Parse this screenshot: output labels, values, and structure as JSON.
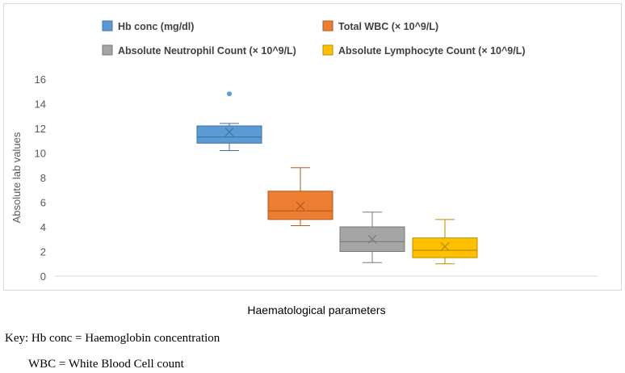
{
  "chart_data": {
    "type": "box",
    "title": "",
    "xlabel": "Haematological parameters",
    "ylabel": "Absolute lab values",
    "ylim": [
      0,
      16
    ],
    "yticks": [
      0,
      2,
      4,
      6,
      8,
      10,
      12,
      14,
      16
    ],
    "grid": false,
    "legend_position": "top",
    "series": [
      {
        "name": "Hb conc (mg/dl)",
        "color": "#5b9bd5",
        "border": "#41719c",
        "min": 10.2,
        "q1": 10.8,
        "median": 11.3,
        "mean": 11.7,
        "q3": 12.2,
        "max": 12.4,
        "outliers": [
          14.8
        ]
      },
      {
        "name": "Total WBC (× 10^9/L)",
        "color": "#ed7d31",
        "border": "#ae5a21",
        "min": 4.1,
        "q1": 4.6,
        "median": 5.3,
        "mean": 5.7,
        "q3": 6.9,
        "max": 8.8,
        "outliers": []
      },
      {
        "name": "Absolute Neutrophil Count (× 10^9/L)",
        "color": "#a5a5a5",
        "border": "#787878",
        "min": 1.1,
        "q1": 2.0,
        "median": 2.8,
        "mean": 3.0,
        "q3": 4.0,
        "max": 5.2,
        "outliers": []
      },
      {
        "name": "Absolute Lymphocyte Count (× 10^9/L)",
        "color": "#ffc000",
        "border": "#bc8c00",
        "min": 1.0,
        "q1": 1.5,
        "median": 2.1,
        "mean": 2.4,
        "q3": 3.1,
        "max": 4.6,
        "outliers": []
      }
    ]
  },
  "key": {
    "line1": "Key: Hb conc = Haemoglobin concentration",
    "line2": "WBC = White Blood Cell count"
  }
}
